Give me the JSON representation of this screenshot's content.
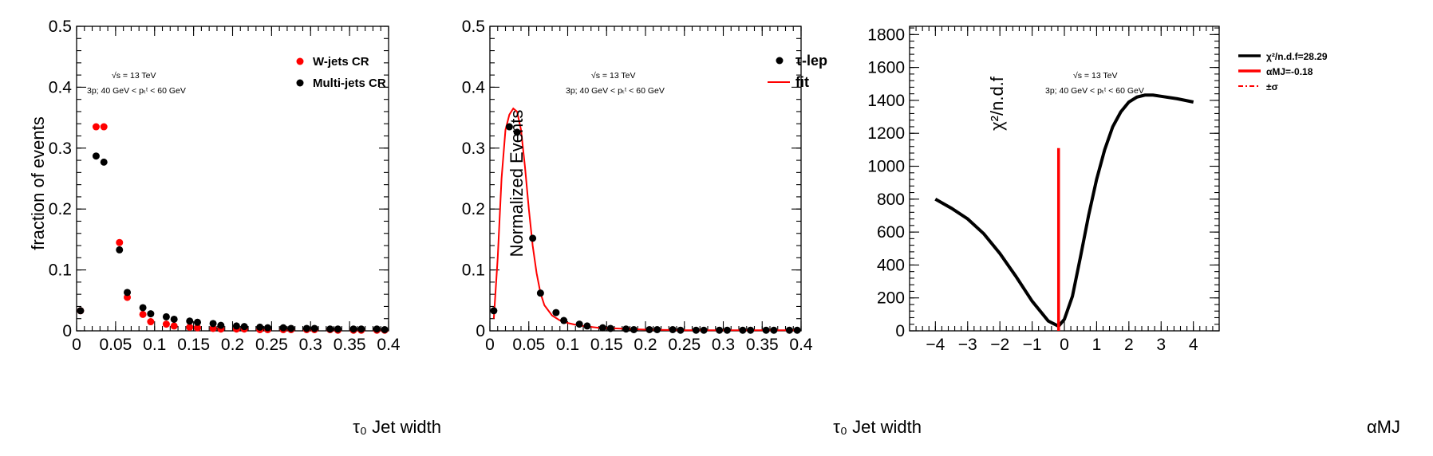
{
  "chart_data": [
    {
      "type": "scatter",
      "xlabel": "τ₀ Jet width",
      "ylabel": "fraction of events",
      "xlim": [
        0,
        0.4
      ],
      "ylim": [
        0,
        0.5
      ],
      "x_ticks": [
        "0",
        "0.05",
        "0.1",
        "0.15",
        "0.2",
        "0.25",
        "0.3",
        "0.35",
        "0.4"
      ],
      "y_ticks": [
        "0",
        "0.1",
        "0.2",
        "0.3",
        "0.4",
        "0.5"
      ],
      "annotation_lines": [
        "√s = 13 TeV",
        "3p; 40 GeV < pₜᵗ < 60 GeV"
      ],
      "legend_position": "top-right",
      "series": [
        {
          "name": "W-jets CR",
          "color": "#ff0000",
          "x": [
            0.005,
            0.025,
            0.035,
            0.055,
            0.065,
            0.085,
            0.095,
            0.115,
            0.125,
            0.145,
            0.155,
            0.175,
            0.185,
            0.205,
            0.215,
            0.235,
            0.245,
            0.265,
            0.275,
            0.295,
            0.305,
            0.325,
            0.335,
            0.355,
            0.365,
            0.385,
            0.395
          ],
          "y": [
            0.033,
            0.335,
            0.335,
            0.145,
            0.055,
            0.027,
            0.015,
            0.011,
            0.008,
            0.006,
            0.005,
            0.004,
            0.003,
            0.003,
            0.003,
            0.002,
            0.002,
            0.002,
            0.002,
            0.002,
            0.002,
            0.002,
            0.001,
            0.001,
            0.001,
            0.001,
            0.001
          ]
        },
        {
          "name": "Multi-jets CR",
          "color": "#000000",
          "x": [
            0.005,
            0.025,
            0.035,
            0.055,
            0.065,
            0.085,
            0.095,
            0.115,
            0.125,
            0.145,
            0.155,
            0.175,
            0.185,
            0.205,
            0.215,
            0.235,
            0.245,
            0.265,
            0.275,
            0.295,
            0.305,
            0.325,
            0.335,
            0.355,
            0.365,
            0.385,
            0.395
          ],
          "y": [
            0.033,
            0.287,
            0.277,
            0.133,
            0.063,
            0.038,
            0.028,
            0.023,
            0.019,
            0.016,
            0.014,
            0.012,
            0.009,
            0.008,
            0.007,
            0.006,
            0.005,
            0.005,
            0.004,
            0.004,
            0.004,
            0.003,
            0.003,
            0.003,
            0.003,
            0.003,
            0.002
          ]
        }
      ]
    },
    {
      "type": "scatter",
      "xlabel": "τ₀ Jet width",
      "ylabel": "Normalized Events",
      "xlim": [
        0,
        0.4
      ],
      "ylim": [
        0,
        0.5
      ],
      "x_ticks": [
        "0",
        "0.05",
        "0.1",
        "0.15",
        "0.2",
        "0.25",
        "0.3",
        "0.35",
        "0.4"
      ],
      "y_ticks": [
        "0",
        "0.1",
        "0.2",
        "0.3",
        "0.4",
        "0.5"
      ],
      "annotation_lines": [
        "√s = 13 TeV",
        "3p; 40 GeV < pₜᵗ < 60 GeV"
      ],
      "legend_position": "top-right",
      "series": [
        {
          "name": "τ-lep",
          "color": "#000000",
          "x": [
            0.005,
            0.025,
            0.035,
            0.055,
            0.065,
            0.085,
            0.095,
            0.115,
            0.125,
            0.145,
            0.155,
            0.175,
            0.185,
            0.205,
            0.215,
            0.235,
            0.245,
            0.265,
            0.275,
            0.295,
            0.305,
            0.325,
            0.335,
            0.355,
            0.365,
            0.385,
            0.395
          ],
          "y": [
            0.033,
            0.335,
            0.326,
            0.152,
            0.062,
            0.03,
            0.017,
            0.011,
            0.008,
            0.005,
            0.004,
            0.003,
            0.002,
            0.002,
            0.002,
            0.002,
            0.001,
            0.001,
            0.001,
            0.001,
            0.001,
            0.001,
            0.001,
            0.001,
            0.001,
            0.001,
            0.001
          ]
        },
        {
          "name": "fit",
          "color": "#ff0000",
          "style": "line",
          "x": [
            0.005,
            0.01,
            0.015,
            0.02,
            0.025,
            0.03,
            0.035,
            0.04,
            0.045,
            0.05,
            0.055,
            0.06,
            0.065,
            0.07,
            0.08,
            0.09,
            0.1,
            0.11,
            0.12,
            0.14,
            0.16,
            0.18,
            0.2,
            0.25,
            0.3,
            0.35,
            0.395
          ],
          "y": [
            0.02,
            0.12,
            0.25,
            0.33,
            0.355,
            0.365,
            0.36,
            0.33,
            0.27,
            0.2,
            0.14,
            0.095,
            0.062,
            0.042,
            0.025,
            0.017,
            0.013,
            0.01,
            0.008,
            0.005,
            0.004,
            0.003,
            0.002,
            0.001,
            0.001,
            0.001,
            0.001
          ]
        }
      ]
    },
    {
      "type": "line",
      "xlabel": "αMJ",
      "ylabel": "χ²/n.d.f",
      "xlim": [
        -4.8,
        4.8
      ],
      "ylim": [
        0,
        1850
      ],
      "x_ticks": [
        "−4",
        "−3",
        "−2",
        "−1",
        "0",
        "1",
        "2",
        "3",
        "4"
      ],
      "y_ticks": [
        "0",
        "200",
        "400",
        "600",
        "800",
        "1000",
        "1200",
        "1400",
        "1600",
        "1800"
      ],
      "annotation_lines": [
        "√s = 13 TeV",
        "3p; 40 GeV < pₜᵗ < 60 GeV"
      ],
      "legend_position": "top-right",
      "legend": [
        {
          "label": "χ²/n.d.f=28.29",
          "color": "#000000",
          "style": "solid"
        },
        {
          "label": "αMJ=-0.18",
          "color": "#ff0000",
          "style": "solid"
        },
        {
          "label": "±σ",
          "color": "#ff0000",
          "style": "dashdot"
        }
      ],
      "series": [
        {
          "name": "χ²/n.d.f",
          "color": "#000000",
          "x": [
            -4,
            -3.5,
            -3,
            -2.5,
            -2,
            -1.5,
            -1,
            -0.5,
            -0.18,
            0,
            0.25,
            0.5,
            0.75,
            1,
            1.25,
            1.5,
            1.75,
            2,
            2.25,
            2.5,
            2.75,
            3,
            3.5,
            4
          ],
          "y": [
            800,
            745,
            680,
            590,
            470,
            330,
            180,
            60,
            28,
            70,
            210,
            450,
            700,
            920,
            1100,
            1240,
            1330,
            1390,
            1420,
            1432,
            1432,
            1425,
            1410,
            1390
          ]
        }
      ],
      "vline": {
        "x": -0.18,
        "y_top": 1110,
        "color": "#ff0000"
      }
    }
  ]
}
